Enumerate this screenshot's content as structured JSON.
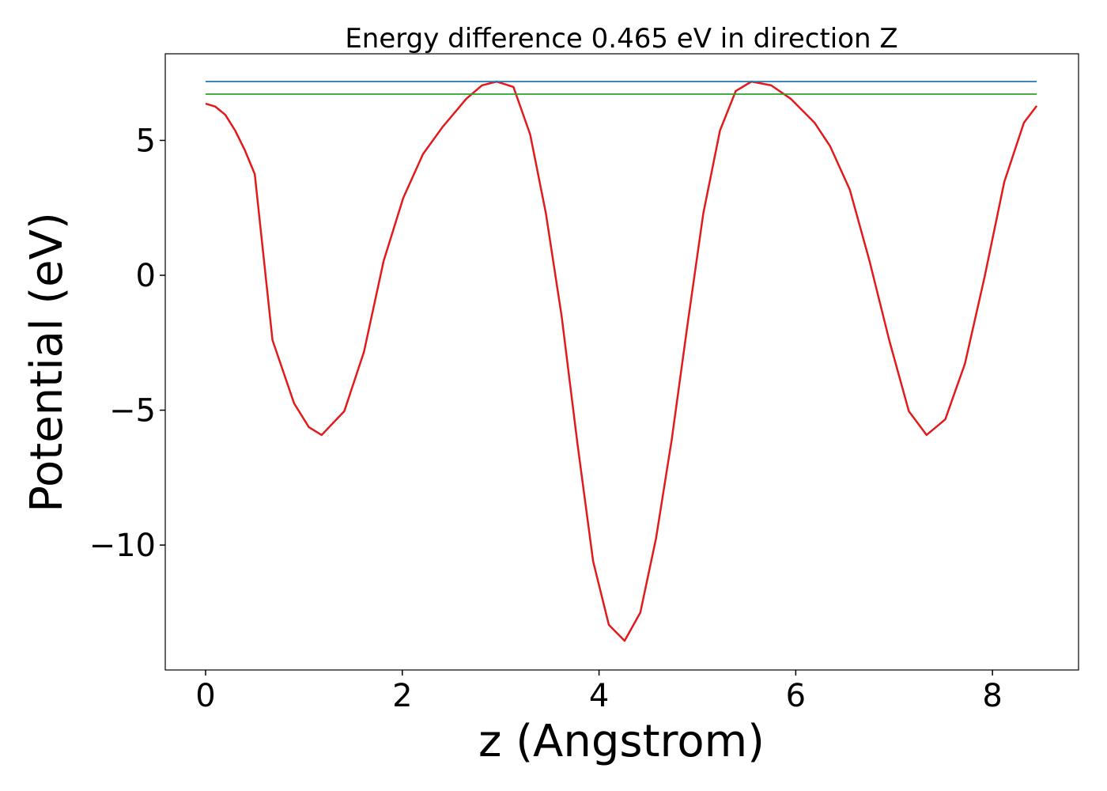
{
  "chart_data": {
    "type": "line",
    "title": "Energy difference 0.465 eV in direction Z",
    "x_label": "z (Angstrom)",
    "y_label": "Potential (eV)",
    "xlim": [
      -0.41,
      8.875
    ],
    "ylim": [
      -14.63,
      8.21
    ],
    "xticks": [
      0,
      2,
      4,
      6,
      8
    ],
    "yticks": [
      {
        "value": -10,
        "label": "−10"
      },
      {
        "value": -5,
        "label": "−5"
      },
      0,
      5
    ],
    "grid": false,
    "series": [
      {
        "color": "#e31a1c",
        "x": [
          0,
          0.1,
          0.2,
          0.3,
          0.4,
          0.5,
          0.68,
          0.9,
          1.05,
          1.18,
          1.41,
          1.61,
          1.81,
          2.01,
          2.21,
          2.41,
          2.65,
          2.81,
          2.96,
          3.13,
          3.3,
          3.46,
          3.62,
          3.78,
          3.94,
          4.1,
          4.26,
          4.42,
          4.58,
          4.74,
          4.9,
          5.06,
          5.23,
          5.39,
          5.55,
          5.75,
          5.95,
          6.19,
          6.35,
          6.55,
          6.75,
          6.95,
          7.15,
          7.33,
          7.52,
          7.72,
          7.92,
          8.12,
          8.32,
          8.45
        ],
        "values": [
          6.36,
          6.25,
          5.95,
          5.37,
          4.63,
          3.75,
          -2.4,
          -4.75,
          -5.63,
          -5.92,
          -5.04,
          -2.84,
          0.53,
          2.87,
          4.49,
          5.5,
          6.54,
          7.04,
          7.18,
          6.98,
          5.22,
          2.29,
          -1.52,
          -6.22,
          -10.6,
          -12.96,
          -13.55,
          -12.5,
          -9.74,
          -6.07,
          -1.82,
          2.29,
          5.37,
          6.83,
          7.18,
          7.04,
          6.54,
          5.66,
          4.78,
          3.17,
          0.53,
          -2.4,
          -5.04,
          -5.92,
          -5.34,
          -3.28,
          -0.06,
          3.46,
          5.66,
          6.28
        ]
      },
      {
        "color": "#1f77b4",
        "x": [
          0,
          8.45
        ],
        "values": [
          7.18,
          7.18
        ]
      },
      {
        "color": "#2ca02c",
        "x": [
          0,
          8.45
        ],
        "values": [
          6.715,
          6.715
        ]
      }
    ]
  }
}
